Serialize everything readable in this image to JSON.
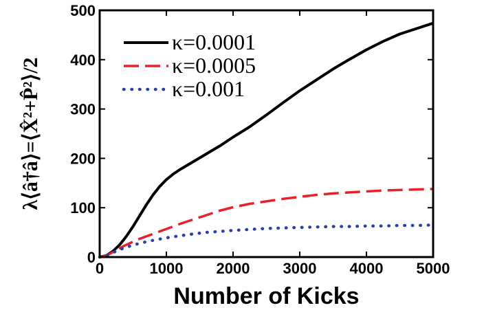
{
  "chart_data": {
    "type": "line",
    "xlabel": "Number of Kicks",
    "ylabel": "λ⟨â†â⟩=⟨X̂²+P̂²⟩/2",
    "xlim": [
      0,
      5000
    ],
    "ylim": [
      0,
      500
    ],
    "xticks": [
      0,
      1000,
      2000,
      3000,
      4000,
      5000
    ],
    "yticks": [
      0,
      100,
      200,
      300,
      400,
      500
    ],
    "legend_position": "top-left",
    "grid": false,
    "series": [
      {
        "name": "κ=0.0001",
        "color": "#000000",
        "style": "solid",
        "x": [
          0,
          100,
          200,
          300,
          400,
          500,
          600,
          700,
          800,
          900,
          1000,
          1100,
          1200,
          1400,
          1600,
          1800,
          2000,
          2250,
          2500,
          2750,
          3000,
          3250,
          3500,
          3750,
          4000,
          4250,
          4500,
          4750,
          5000
        ],
        "values": [
          0,
          3,
          12,
          25,
          42,
          62,
          84,
          106,
          126,
          143,
          157,
          168,
          177,
          193,
          209,
          225,
          243,
          264,
          288,
          313,
          337,
          359,
          381,
          401,
          420,
          437,
          452,
          463,
          474
        ]
      },
      {
        "name": "κ=0.0005",
        "color": "#e8202a",
        "style": "dashed",
        "x": [
          0,
          100,
          200,
          300,
          400,
          500,
          600,
          800,
          1000,
          1200,
          1400,
          1600,
          1800,
          2000,
          2250,
          2500,
          2750,
          3000,
          3250,
          3500,
          3750,
          4000,
          4250,
          4500,
          4750,
          5000
        ],
        "values": [
          0,
          3,
          10,
          18,
          25,
          31,
          37,
          47,
          57,
          67,
          76,
          85,
          94,
          101,
          108,
          113,
          118,
          122,
          126,
          129,
          131,
          133,
          135,
          136,
          137,
          138
        ]
      },
      {
        "name": "κ=0.001",
        "color": "#2b3fa8",
        "style": "dotted",
        "x": [
          0,
          100,
          200,
          300,
          400,
          500,
          600,
          800,
          1000,
          1200,
          1400,
          1600,
          1800,
          2000,
          2250,
          2500,
          2750,
          3000,
          3250,
          3500,
          3750,
          4000,
          4250,
          4500,
          4750,
          5000
        ],
        "values": [
          0,
          3,
          9,
          15,
          20,
          24,
          28,
          34,
          39,
          43,
          47,
          50,
          52,
          54,
          56,
          58,
          59,
          60,
          61,
          62,
          62,
          63,
          63,
          64,
          64,
          65
        ]
      }
    ]
  }
}
